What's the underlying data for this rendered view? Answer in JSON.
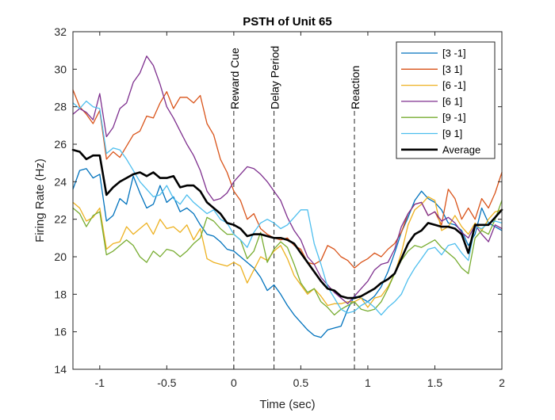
{
  "chart_data": {
    "type": "line",
    "title": "PSTH of Unit 65",
    "xlabel": "Time (sec)",
    "ylabel": "Firing Rate (Hz)",
    "xlim": [
      -1.2,
      2
    ],
    "ylim": [
      14,
      32
    ],
    "xticks": [
      -1,
      -0.5,
      0,
      0.5,
      1,
      1.5,
      2
    ],
    "xtick_labels": [
      "-1",
      "-0.5",
      "0",
      "0.5",
      "1",
      "1.5",
      "2"
    ],
    "yticks": [
      14,
      16,
      18,
      20,
      22,
      24,
      26,
      28,
      30,
      32
    ],
    "ytick_labels": [
      "14",
      "16",
      "18",
      "20",
      "22",
      "24",
      "26",
      "28",
      "30",
      "32"
    ],
    "grid": false,
    "legend_position": "top-right",
    "events": [
      {
        "x": 0,
        "label": "Reward Cue"
      },
      {
        "x": 0.3,
        "label": "Delay Period"
      },
      {
        "x": 0.9,
        "label": "Reaction"
      }
    ],
    "series": [
      {
        "name": "[3 -1]",
        "color": "#0072BD",
        "width": 1.3,
        "x": [
          -1.2,
          -1.15,
          -1.1,
          -1.05,
          -1,
          -0.95,
          -0.9,
          -0.85,
          -0.8,
          -0.75,
          -0.7,
          -0.65,
          -0.6,
          -0.55,
          -0.5,
          -0.45,
          -0.4,
          -0.35,
          -0.3,
          -0.25,
          -0.2,
          -0.15,
          -0.1,
          -0.05,
          0,
          0.05,
          0.1,
          0.15,
          0.2,
          0.25,
          0.3,
          0.35,
          0.4,
          0.45,
          0.5,
          0.55,
          0.6,
          0.65,
          0.7,
          0.75,
          0.8,
          0.85,
          0.9,
          0.95,
          1,
          1.05,
          1.1,
          1.15,
          1.2,
          1.25,
          1.3,
          1.35,
          1.4,
          1.45,
          1.5,
          1.55,
          1.6,
          1.65,
          1.7,
          1.75,
          1.8,
          1.85,
          1.9,
          1.95,
          2
        ],
        "y": [
          23.6,
          24.6,
          24.7,
          24.2,
          24.4,
          21.9,
          22.2,
          23.1,
          22.8,
          24.3,
          23.4,
          22.6,
          22.8,
          23.8,
          22.9,
          23.2,
          22.4,
          22.6,
          22.3,
          21.7,
          21.2,
          21.1,
          20.8,
          20.4,
          20.3,
          20.0,
          19.7,
          19.4,
          18.9,
          18.2,
          18.5,
          18.0,
          17.4,
          16.9,
          16.5,
          16.1,
          15.8,
          15.7,
          16.1,
          16.2,
          16.3,
          17.2,
          17.9,
          17.8,
          17.6,
          17.9,
          18.4,
          19.2,
          20.2,
          21.3,
          22.1,
          23.0,
          23.5,
          23.1,
          22.9,
          22.5,
          21.8,
          21.7,
          21.4,
          20.6,
          21.2,
          22.6,
          21.8,
          21.6,
          21.4
        ]
      },
      {
        "name": "[3 1]",
        "color": "#D95319",
        "width": 1.3,
        "x": [
          -1.2,
          -1.15,
          -1.1,
          -1.05,
          -1,
          -0.95,
          -0.9,
          -0.85,
          -0.8,
          -0.75,
          -0.7,
          -0.65,
          -0.6,
          -0.55,
          -0.5,
          -0.45,
          -0.4,
          -0.35,
          -0.3,
          -0.25,
          -0.2,
          -0.15,
          -0.1,
          -0.05,
          0,
          0.05,
          0.1,
          0.15,
          0.2,
          0.25,
          0.3,
          0.35,
          0.4,
          0.45,
          0.5,
          0.55,
          0.6,
          0.65,
          0.7,
          0.75,
          0.8,
          0.85,
          0.9,
          0.95,
          1,
          1.05,
          1.1,
          1.15,
          1.2,
          1.25,
          1.3,
          1.35,
          1.4,
          1.45,
          1.5,
          1.55,
          1.6,
          1.65,
          1.7,
          1.75,
          1.8,
          1.85,
          1.9,
          1.95,
          2
        ],
        "y": [
          28.9,
          28.0,
          27.6,
          27.1,
          27.8,
          25.2,
          25.6,
          25.3,
          25.9,
          26.5,
          26.7,
          27.5,
          27.4,
          28.2,
          28.8,
          27.9,
          28.5,
          28.5,
          28.2,
          28.6,
          27.1,
          26.5,
          25.2,
          24.5,
          23.5,
          23.0,
          22.0,
          22.3,
          21.5,
          21.2,
          21.0,
          20.9,
          21.0,
          20.6,
          20.4,
          19.7,
          19.6,
          19.8,
          20.6,
          20.4,
          20.0,
          19.8,
          19.4,
          19.7,
          19.9,
          20.2,
          20.0,
          20.4,
          20.7,
          21.3,
          22.3,
          22.8,
          22.9,
          22.2,
          22.4,
          21.7,
          23.6,
          23.1,
          22.0,
          22.6,
          22.0,
          23.1,
          22.6,
          23.4,
          24.5
        ]
      },
      {
        "name": "[6 -1]",
        "color": "#EDB120",
        "width": 1.3,
        "x": [
          -1.2,
          -1.15,
          -1.1,
          -1.05,
          -1,
          -0.95,
          -0.9,
          -0.85,
          -0.8,
          -0.75,
          -0.7,
          -0.65,
          -0.6,
          -0.55,
          -0.5,
          -0.45,
          -0.4,
          -0.35,
          -0.3,
          -0.25,
          -0.2,
          -0.15,
          -0.1,
          -0.05,
          0,
          0.05,
          0.1,
          0.15,
          0.2,
          0.25,
          0.3,
          0.35,
          0.4,
          0.45,
          0.5,
          0.55,
          0.6,
          0.65,
          0.7,
          0.75,
          0.8,
          0.85,
          0.9,
          0.95,
          1,
          1.05,
          1.1,
          1.15,
          1.2,
          1.25,
          1.3,
          1.35,
          1.4,
          1.45,
          1.5,
          1.55,
          1.6,
          1.65,
          1.7,
          1.75,
          1.8,
          1.85,
          1.9,
          1.95,
          2
        ],
        "y": [
          22.9,
          22.6,
          21.9,
          22.1,
          22.6,
          20.4,
          20.7,
          20.8,
          21.6,
          21.2,
          21.5,
          21.8,
          21.2,
          22.0,
          21.5,
          21.6,
          21.3,
          21.7,
          20.9,
          21.5,
          19.9,
          19.7,
          19.6,
          19.5,
          19.7,
          19.5,
          18.6,
          19.3,
          20.0,
          19.8,
          20.3,
          20.6,
          19.9,
          19.0,
          18.5,
          18.0,
          18.3,
          17.9,
          17.4,
          17.5,
          17.5,
          17.6,
          17.6,
          17.8,
          17.3,
          17.8,
          17.9,
          18.4,
          19.1,
          20.2,
          21.7,
          22.5,
          22.8,
          23.2,
          23.0,
          21.4,
          21.6,
          22.2,
          21.6,
          21.2,
          21.8,
          21.4,
          22.0,
          22.4,
          22.5
        ]
      },
      {
        "name": "[6 1]",
        "color": "#7E2F8E",
        "width": 1.3,
        "x": [
          -1.2,
          -1.15,
          -1.1,
          -1.05,
          -1,
          -0.95,
          -0.9,
          -0.85,
          -0.8,
          -0.75,
          -0.7,
          -0.65,
          -0.6,
          -0.55,
          -0.5,
          -0.45,
          -0.4,
          -0.35,
          -0.3,
          -0.25,
          -0.2,
          -0.15,
          -0.1,
          -0.05,
          0,
          0.05,
          0.1,
          0.15,
          0.2,
          0.25,
          0.3,
          0.35,
          0.4,
          0.45,
          0.5,
          0.55,
          0.6,
          0.65,
          0.7,
          0.75,
          0.8,
          0.85,
          0.9,
          0.95,
          1,
          1.05,
          1.1,
          1.15,
          1.2,
          1.25,
          1.3,
          1.35,
          1.4,
          1.45,
          1.5,
          1.55,
          1.6,
          1.65,
          1.7,
          1.75,
          1.8,
          1.85,
          1.9,
          1.95,
          2
        ],
        "y": [
          27.6,
          27.9,
          27.7,
          27.3,
          28.7,
          26.4,
          26.9,
          27.9,
          28.2,
          29.3,
          29.8,
          30.7,
          30.2,
          29.2,
          28.0,
          27.4,
          26.7,
          26.0,
          25.4,
          24.6,
          23.5,
          23.0,
          23.1,
          23.4,
          24.0,
          24.4,
          24.8,
          24.7,
          24.4,
          24.0,
          23.5,
          23.0,
          22.1,
          21.4,
          20.9,
          20.0,
          19.6,
          18.9,
          18.5,
          18.1,
          17.8,
          17.5,
          17.9,
          18.3,
          18.7,
          19.3,
          19.6,
          19.7,
          20.4,
          21.6,
          22.3,
          22.8,
          22.9,
          22.2,
          22.4,
          21.9,
          22.1,
          21.8,
          21.3,
          21.0,
          21.7,
          21.2,
          20.8,
          21.7,
          21.5
        ]
      },
      {
        "name": "[9 -1]",
        "color": "#77AC30",
        "width": 1.3,
        "x": [
          -1.2,
          -1.15,
          -1.1,
          -1.05,
          -1,
          -0.95,
          -0.9,
          -0.85,
          -0.8,
          -0.75,
          -0.7,
          -0.65,
          -0.6,
          -0.55,
          -0.5,
          -0.45,
          -0.4,
          -0.35,
          -0.3,
          -0.25,
          -0.2,
          -0.15,
          -0.1,
          -0.05,
          0,
          0.05,
          0.1,
          0.15,
          0.2,
          0.25,
          0.3,
          0.35,
          0.4,
          0.45,
          0.5,
          0.55,
          0.6,
          0.65,
          0.7,
          0.75,
          0.8,
          0.85,
          0.9,
          0.95,
          1,
          1.05,
          1.1,
          1.15,
          1.2,
          1.25,
          1.3,
          1.35,
          1.4,
          1.45,
          1.5,
          1.55,
          1.6,
          1.65,
          1.7,
          1.75,
          1.8,
          1.85,
          1.9,
          1.95,
          2
        ],
        "y": [
          22.6,
          22.3,
          21.6,
          22.2,
          22.4,
          20.1,
          20.3,
          20.6,
          20.9,
          20.6,
          20.0,
          19.7,
          20.3,
          20.0,
          20.4,
          20.3,
          20.0,
          20.3,
          20.7,
          21.0,
          22.1,
          21.9,
          21.5,
          21.2,
          21.2,
          20.9,
          19.9,
          20.3,
          21.3,
          19.7,
          20.4,
          20.8,
          20.5,
          19.6,
          18.6,
          18.1,
          18.3,
          17.6,
          17.3,
          16.9,
          17.2,
          17.4,
          17.6,
          17.2,
          17.1,
          17.2,
          17.6,
          18.3,
          19.1,
          19.8,
          20.3,
          20.6,
          20.5,
          20.7,
          20.9,
          20.5,
          20.2,
          19.9,
          19.4,
          19.1,
          21.0,
          21.4,
          21.2,
          22.0,
          23.0
        ]
      },
      {
        "name": "[9 1]",
        "color": "#4DBEEE",
        "width": 1.3,
        "x": [
          -1.2,
          -1.15,
          -1.1,
          -1.05,
          -1,
          -0.95,
          -0.9,
          -0.85,
          -0.8,
          -0.75,
          -0.7,
          -0.65,
          -0.6,
          -0.55,
          -0.5,
          -0.45,
          -0.4,
          -0.35,
          -0.3,
          -0.25,
          -0.2,
          -0.15,
          -0.1,
          -0.05,
          0,
          0.05,
          0.1,
          0.15,
          0.2,
          0.25,
          0.3,
          0.35,
          0.4,
          0.45,
          0.5,
          0.55,
          0.6,
          0.65,
          0.7,
          0.75,
          0.8,
          0.85,
          0.9,
          0.95,
          1,
          1.05,
          1.1,
          1.15,
          1.2,
          1.25,
          1.3,
          1.35,
          1.4,
          1.45,
          1.5,
          1.55,
          1.6,
          1.65,
          1.7,
          1.75,
          1.8,
          1.85,
          1.9,
          1.95,
          2
        ],
        "y": [
          28.2,
          27.9,
          28.3,
          28.0,
          27.9,
          25.5,
          25.8,
          25.7,
          25.2,
          24.6,
          24.0,
          23.6,
          23.2,
          23.3,
          23.8,
          23.1,
          22.8,
          23.3,
          22.9,
          22.6,
          22.3,
          22.5,
          22.0,
          21.8,
          21.2,
          20.9,
          20.5,
          21.3,
          21.8,
          22.0,
          21.8,
          21.5,
          21.7,
          22.1,
          22.5,
          22.5,
          20.7,
          19.6,
          18.4,
          17.8,
          17.2,
          17.0,
          17.1,
          17.4,
          17.6,
          17.3,
          16.9,
          17.3,
          17.6,
          18.0,
          18.8,
          19.4,
          19.9,
          20.4,
          20.5,
          20.1,
          20.6,
          20.7,
          20.2,
          19.8,
          21.6,
          21.5,
          21.8,
          21.9,
          21.8
        ]
      },
      {
        "name": "Average",
        "color": "#000000",
        "width": 2.6,
        "x": [
          -1.2,
          -1.15,
          -1.1,
          -1.05,
          -1,
          -0.95,
          -0.9,
          -0.85,
          -0.8,
          -0.75,
          -0.7,
          -0.65,
          -0.6,
          -0.55,
          -0.5,
          -0.45,
          -0.4,
          -0.35,
          -0.3,
          -0.25,
          -0.2,
          -0.15,
          -0.1,
          -0.05,
          0,
          0.05,
          0.1,
          0.15,
          0.2,
          0.25,
          0.3,
          0.35,
          0.4,
          0.45,
          0.5,
          0.55,
          0.6,
          0.65,
          0.7,
          0.75,
          0.8,
          0.85,
          0.9,
          0.95,
          1,
          1.05,
          1.1,
          1.15,
          1.2,
          1.25,
          1.3,
          1.35,
          1.4,
          1.45,
          1.5,
          1.55,
          1.6,
          1.65,
          1.7,
          1.75,
          1.8,
          1.85,
          1.9,
          1.95,
          2
        ],
        "y": [
          25.7,
          25.6,
          25.2,
          25.4,
          25.4,
          23.3,
          23.7,
          24.0,
          24.2,
          24.4,
          24.5,
          24.3,
          24.5,
          24.2,
          24.2,
          24.3,
          23.7,
          23.8,
          23.8,
          23.5,
          22.9,
          22.6,
          22.3,
          21.8,
          21.7,
          21.5,
          21.1,
          21.2,
          21.2,
          21.1,
          21.0,
          21.0,
          20.9,
          20.7,
          20.2,
          19.7,
          19.2,
          18.7,
          18.3,
          18.2,
          17.9,
          17.8,
          17.8,
          17.9,
          18.1,
          18.3,
          18.6,
          18.8,
          19.1,
          19.9,
          20.7,
          21.2,
          21.4,
          21.8,
          21.7,
          21.6,
          21.6,
          21.5,
          21.2,
          20.2,
          21.7,
          21.7,
          21.7,
          22.1,
          22.5
        ]
      }
    ]
  }
}
